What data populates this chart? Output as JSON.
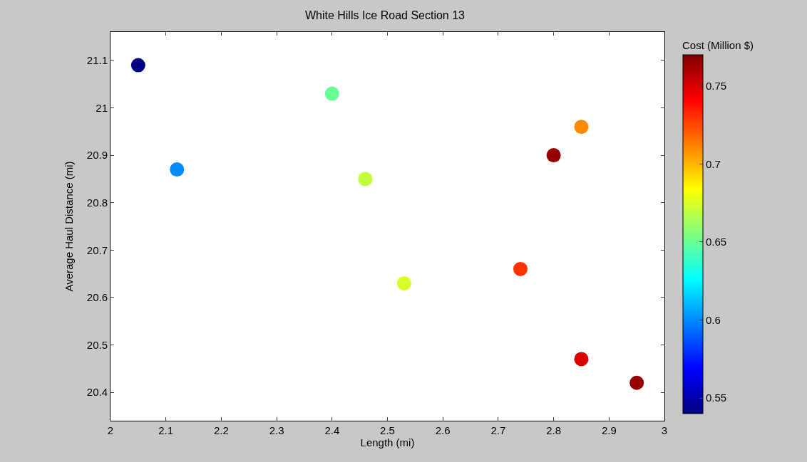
{
  "chart_data": {
    "type": "scatter",
    "title": "White Hills Ice Road Section 13",
    "xlabel": "Length (mi)",
    "ylabel": "Average Haul Distance (mi)",
    "clabel": "Cost (Million $)",
    "x": [
      2.05,
      2.12,
      2.4,
      2.46,
      2.53,
      2.74,
      2.8,
      2.85,
      2.85,
      2.95
    ],
    "values": [
      21.09,
      20.87,
      21.03,
      20.85,
      20.63,
      20.66,
      20.9,
      20.96,
      20.47,
      20.42
    ],
    "cvalues": [
      0.54,
      0.6,
      0.65,
      0.67,
      0.675,
      0.73,
      0.765,
      0.71,
      0.75,
      0.765
    ],
    "xlim": [
      2,
      3
    ],
    "xticks": [
      2,
      2.1,
      2.2,
      2.3,
      2.4,
      2.5,
      2.6,
      2.7,
      2.8,
      2.9,
      3
    ],
    "ylim": [
      20.34,
      21.16
    ],
    "yticks": [
      20.4,
      20.5,
      20.6,
      20.7,
      20.8,
      20.9,
      21,
      21.1
    ],
    "clim": [
      0.54,
      0.77
    ],
    "cticks": [
      0.55,
      0.6,
      0.65,
      0.7,
      0.75
    ],
    "marker": "circle"
  }
}
